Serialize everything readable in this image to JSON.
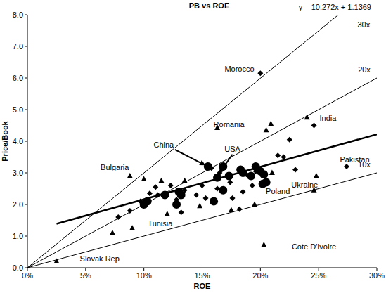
{
  "chart_data": {
    "type": "scatter",
    "title": "PB vs ROE",
    "equation": "y = 10.272x + 1.1369",
    "x_label": "ROE",
    "y_label": "Price/Book",
    "xlim": [
      0,
      30
    ],
    "ylim": [
      0,
      8
    ],
    "xticks": [
      {
        "value": 0,
        "label": "0%"
      },
      {
        "value": 5,
        "label": "5%"
      },
      {
        "value": 10,
        "label": "10%"
      },
      {
        "value": 15,
        "label": "15%"
      },
      {
        "value": 20,
        "label": "20%"
      },
      {
        "value": 25,
        "label": "25%"
      },
      {
        "value": 30,
        "label": "30%"
      }
    ],
    "yticks": [
      {
        "value": 0,
        "label": "0.0"
      },
      {
        "value": 1,
        "label": "1.0"
      },
      {
        "value": 2,
        "label": "2.0"
      },
      {
        "value": 3,
        "label": "3.0"
      },
      {
        "value": 4,
        "label": "4.0"
      },
      {
        "value": 5,
        "label": "5.0"
      },
      {
        "value": 6,
        "label": "6.0"
      },
      {
        "value": 7,
        "label": "7.0"
      },
      {
        "value": 8,
        "label": "8.0"
      }
    ],
    "grid": false,
    "series": [
      {
        "type": "scatter",
        "marker": "diamond",
        "color": "#000000",
        "x": [
          20.0,
          24.6,
          27.4,
          7.8,
          8.8,
          9.7,
          10.5,
          11.0,
          11.2,
          12.3,
          12.8,
          13.5,
          13.2,
          14.5,
          15.0,
          15.3,
          15.8,
          16.3,
          16.5,
          17.4,
          17.6,
          18.2,
          18.5,
          18.8,
          19.3,
          19.6,
          21.5,
          22.0,
          22.5,
          23.0
        ],
        "values": [
          6.15,
          4.5,
          3.2,
          1.6,
          1.8,
          2.1,
          2.35,
          2.55,
          2.3,
          2.6,
          2.15,
          2.45,
          1.75,
          2.3,
          2.6,
          2.2,
          3.15,
          2.5,
          3.0,
          2.7,
          2.2,
          1.85,
          2.4,
          2.95,
          2.6,
          3.05,
          3.55,
          3.5,
          4.05,
          3.1
        ]
      },
      {
        "type": "scatter",
        "marker": "triangle",
        "color": "#000000",
        "x": [
          2.5,
          7.3,
          8.8,
          9.0,
          10.0,
          11.5,
          12.0,
          13.5,
          14.8,
          16.3,
          17.5,
          20.3,
          19.5,
          20.5,
          20.9,
          24.0,
          24.8,
          24.6,
          21.0
        ],
        "values": [
          0.2,
          1.1,
          2.9,
          1.25,
          2.8,
          2.75,
          1.7,
          2.75,
          1.95,
          4.42,
          1.82,
          0.72,
          2.0,
          4.35,
          4.55,
          4.75,
          2.9,
          2.45,
          3.0
        ]
      },
      {
        "type": "scatter",
        "marker": "circle",
        "color": "#000000",
        "x": [
          10.0,
          10.3,
          11.8,
          12.8,
          13.0,
          13.2,
          15.5,
          16.0,
          16.3,
          16.8,
          16.8,
          17.3,
          18.3,
          18.5,
          19.2,
          19.6,
          20.0,
          20.3,
          20.5,
          20.2
        ],
        "values": [
          2.0,
          2.1,
          2.3,
          2.0,
          2.4,
          2.3,
          3.2,
          2.1,
          2.85,
          3.2,
          2.45,
          2.9,
          3.1,
          3.0,
          2.9,
          3.2,
          3.05,
          2.95,
          2.7,
          2.65
        ]
      },
      {
        "type": "line",
        "name": "30x",
        "color": "#000000",
        "line_style": "solid",
        "x": [
          0,
          26.7
        ],
        "values": [
          0,
          8.0
        ]
      },
      {
        "type": "line",
        "name": "20x",
        "color": "#000000",
        "line_style": "solid",
        "x": [
          0,
          30
        ],
        "values": [
          0,
          6.0
        ]
      },
      {
        "type": "line",
        "name": "10x",
        "color": "#000000",
        "line_style": "solid",
        "x": [
          0,
          30
        ],
        "values": [
          0,
          3.0
        ]
      },
      {
        "type": "line",
        "marker": "none",
        "color": "#000000",
        "line_style": "bold",
        "x": [
          2.5,
          30
        ],
        "values": [
          1.39,
          4.22
        ]
      }
    ],
    "annotations": [
      {
        "text": "Morocco",
        "x": 18.2,
        "y": 6.29
      },
      {
        "text": "Romania",
        "x": 17.3,
        "y": 4.53
      },
      {
        "text": "India",
        "x": 25.8,
        "y": 4.73
      },
      {
        "text": "Pakistan",
        "x": 28.1,
        "y": 3.42
      },
      {
        "text": "Ukraine",
        "x": 23.8,
        "y": 2.62
      },
      {
        "text": "Poland",
        "x": 21.5,
        "y": 2.42
      },
      {
        "text": "USA",
        "x": 17.6,
        "y": 3.76,
        "arrow_to": {
          "x": 16.3,
          "y": 2.9
        }
      },
      {
        "text": "China",
        "x": 11.7,
        "y": 3.89,
        "arrow_to": {
          "x": 15.5,
          "y": 3.2
        }
      },
      {
        "text": "Bulgaria",
        "x": 7.5,
        "y": 3.18
      },
      {
        "text": "Tunisia",
        "x": 11.4,
        "y": 1.4
      },
      {
        "text": "Slovak Rep",
        "x": 6.2,
        "y": 0.29
      },
      {
        "text": "Cote D'Ivoire",
        "x": 24.6,
        "y": 0.67
      }
    ]
  }
}
